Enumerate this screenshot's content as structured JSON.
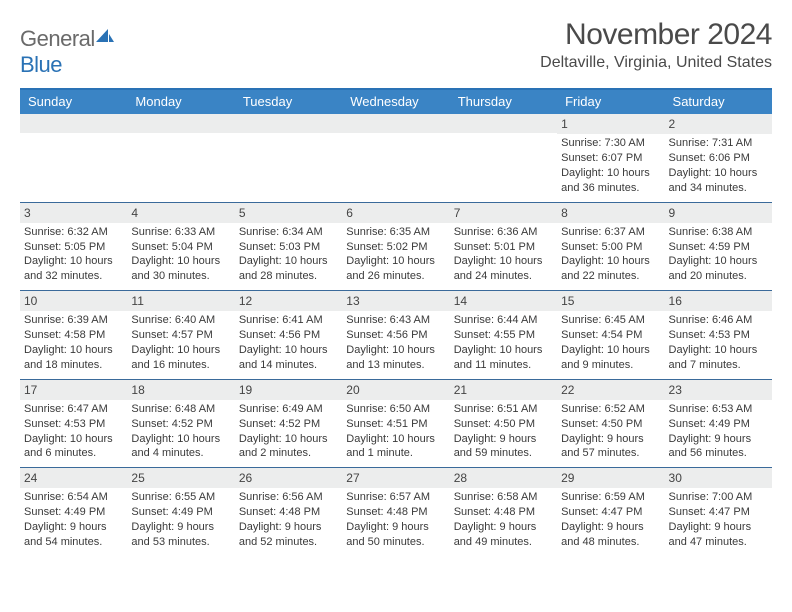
{
  "logo": {
    "text1": "General",
    "text2": "Blue"
  },
  "title": "November 2024",
  "location": "Deltaville, Virginia, United States",
  "colors": {
    "header_bg": "#3a84c5",
    "rule": "#3a6a9a",
    "daynum_bg": "#eceded",
    "text": "#3a3a3a",
    "logo_accent": "#2a72b5"
  },
  "day_names": [
    "Sunday",
    "Monday",
    "Tuesday",
    "Wednesday",
    "Thursday",
    "Friday",
    "Saturday"
  ],
  "weeks": [
    [
      {
        "n": "",
        "sr": "",
        "ss": "",
        "dl": ""
      },
      {
        "n": "",
        "sr": "",
        "ss": "",
        "dl": ""
      },
      {
        "n": "",
        "sr": "",
        "ss": "",
        "dl": ""
      },
      {
        "n": "",
        "sr": "",
        "ss": "",
        "dl": ""
      },
      {
        "n": "",
        "sr": "",
        "ss": "",
        "dl": ""
      },
      {
        "n": "1",
        "sr": "Sunrise: 7:30 AM",
        "ss": "Sunset: 6:07 PM",
        "dl": "Daylight: 10 hours and 36 minutes."
      },
      {
        "n": "2",
        "sr": "Sunrise: 7:31 AM",
        "ss": "Sunset: 6:06 PM",
        "dl": "Daylight: 10 hours and 34 minutes."
      }
    ],
    [
      {
        "n": "3",
        "sr": "Sunrise: 6:32 AM",
        "ss": "Sunset: 5:05 PM",
        "dl": "Daylight: 10 hours and 32 minutes."
      },
      {
        "n": "4",
        "sr": "Sunrise: 6:33 AM",
        "ss": "Sunset: 5:04 PM",
        "dl": "Daylight: 10 hours and 30 minutes."
      },
      {
        "n": "5",
        "sr": "Sunrise: 6:34 AM",
        "ss": "Sunset: 5:03 PM",
        "dl": "Daylight: 10 hours and 28 minutes."
      },
      {
        "n": "6",
        "sr": "Sunrise: 6:35 AM",
        "ss": "Sunset: 5:02 PM",
        "dl": "Daylight: 10 hours and 26 minutes."
      },
      {
        "n": "7",
        "sr": "Sunrise: 6:36 AM",
        "ss": "Sunset: 5:01 PM",
        "dl": "Daylight: 10 hours and 24 minutes."
      },
      {
        "n": "8",
        "sr": "Sunrise: 6:37 AM",
        "ss": "Sunset: 5:00 PM",
        "dl": "Daylight: 10 hours and 22 minutes."
      },
      {
        "n": "9",
        "sr": "Sunrise: 6:38 AM",
        "ss": "Sunset: 4:59 PM",
        "dl": "Daylight: 10 hours and 20 minutes."
      }
    ],
    [
      {
        "n": "10",
        "sr": "Sunrise: 6:39 AM",
        "ss": "Sunset: 4:58 PM",
        "dl": "Daylight: 10 hours and 18 minutes."
      },
      {
        "n": "11",
        "sr": "Sunrise: 6:40 AM",
        "ss": "Sunset: 4:57 PM",
        "dl": "Daylight: 10 hours and 16 minutes."
      },
      {
        "n": "12",
        "sr": "Sunrise: 6:41 AM",
        "ss": "Sunset: 4:56 PM",
        "dl": "Daylight: 10 hours and 14 minutes."
      },
      {
        "n": "13",
        "sr": "Sunrise: 6:43 AM",
        "ss": "Sunset: 4:56 PM",
        "dl": "Daylight: 10 hours and 13 minutes."
      },
      {
        "n": "14",
        "sr": "Sunrise: 6:44 AM",
        "ss": "Sunset: 4:55 PM",
        "dl": "Daylight: 10 hours and 11 minutes."
      },
      {
        "n": "15",
        "sr": "Sunrise: 6:45 AM",
        "ss": "Sunset: 4:54 PM",
        "dl": "Daylight: 10 hours and 9 minutes."
      },
      {
        "n": "16",
        "sr": "Sunrise: 6:46 AM",
        "ss": "Sunset: 4:53 PM",
        "dl": "Daylight: 10 hours and 7 minutes."
      }
    ],
    [
      {
        "n": "17",
        "sr": "Sunrise: 6:47 AM",
        "ss": "Sunset: 4:53 PM",
        "dl": "Daylight: 10 hours and 6 minutes."
      },
      {
        "n": "18",
        "sr": "Sunrise: 6:48 AM",
        "ss": "Sunset: 4:52 PM",
        "dl": "Daylight: 10 hours and 4 minutes."
      },
      {
        "n": "19",
        "sr": "Sunrise: 6:49 AM",
        "ss": "Sunset: 4:52 PM",
        "dl": "Daylight: 10 hours and 2 minutes."
      },
      {
        "n": "20",
        "sr": "Sunrise: 6:50 AM",
        "ss": "Sunset: 4:51 PM",
        "dl": "Daylight: 10 hours and 1 minute."
      },
      {
        "n": "21",
        "sr": "Sunrise: 6:51 AM",
        "ss": "Sunset: 4:50 PM",
        "dl": "Daylight: 9 hours and 59 minutes."
      },
      {
        "n": "22",
        "sr": "Sunrise: 6:52 AM",
        "ss": "Sunset: 4:50 PM",
        "dl": "Daylight: 9 hours and 57 minutes."
      },
      {
        "n": "23",
        "sr": "Sunrise: 6:53 AM",
        "ss": "Sunset: 4:49 PM",
        "dl": "Daylight: 9 hours and 56 minutes."
      }
    ],
    [
      {
        "n": "24",
        "sr": "Sunrise: 6:54 AM",
        "ss": "Sunset: 4:49 PM",
        "dl": "Daylight: 9 hours and 54 minutes."
      },
      {
        "n": "25",
        "sr": "Sunrise: 6:55 AM",
        "ss": "Sunset: 4:49 PM",
        "dl": "Daylight: 9 hours and 53 minutes."
      },
      {
        "n": "26",
        "sr": "Sunrise: 6:56 AM",
        "ss": "Sunset: 4:48 PM",
        "dl": "Daylight: 9 hours and 52 minutes."
      },
      {
        "n": "27",
        "sr": "Sunrise: 6:57 AM",
        "ss": "Sunset: 4:48 PM",
        "dl": "Daylight: 9 hours and 50 minutes."
      },
      {
        "n": "28",
        "sr": "Sunrise: 6:58 AM",
        "ss": "Sunset: 4:48 PM",
        "dl": "Daylight: 9 hours and 49 minutes."
      },
      {
        "n": "29",
        "sr": "Sunrise: 6:59 AM",
        "ss": "Sunset: 4:47 PM",
        "dl": "Daylight: 9 hours and 48 minutes."
      },
      {
        "n": "30",
        "sr": "Sunrise: 7:00 AM",
        "ss": "Sunset: 4:47 PM",
        "dl": "Daylight: 9 hours and 47 minutes."
      }
    ]
  ]
}
